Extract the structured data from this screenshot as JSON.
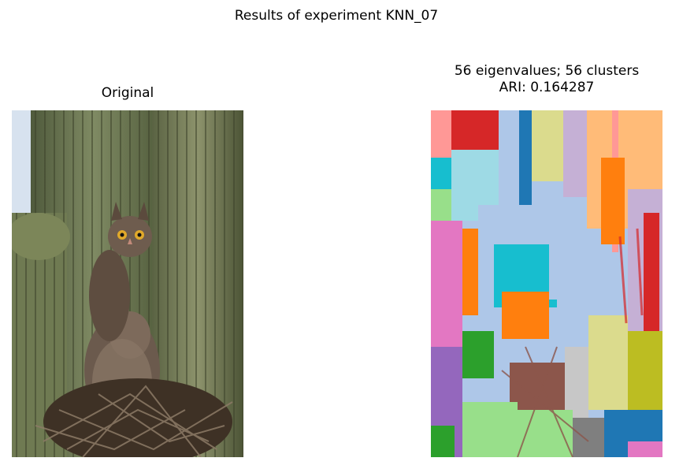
{
  "figure": {
    "suptitle": "Results of experiment KNN_07"
  },
  "left_panel": {
    "title": "Original",
    "image_description_icon": "owl-on-saguaro-photo"
  },
  "right_panel": {
    "title": "56 eigenvalues; 56 clusters\nARI: 0.164287",
    "image_description_icon": "cluster-segmentation-map"
  },
  "palette": {
    "tab_colors": [
      "#1f77b4",
      "#aec7e8",
      "#ff7f0e",
      "#ffbb78",
      "#2ca02c",
      "#98df8a",
      "#d62728",
      "#ff9896",
      "#9467bd",
      "#c5b0d5",
      "#8c564b",
      "#c49c94",
      "#e377c2",
      "#f7b6d2",
      "#7f7f7f",
      "#c7c7c7",
      "#bcbd22",
      "#dbdb8d",
      "#17becf",
      "#9edae5"
    ]
  }
}
